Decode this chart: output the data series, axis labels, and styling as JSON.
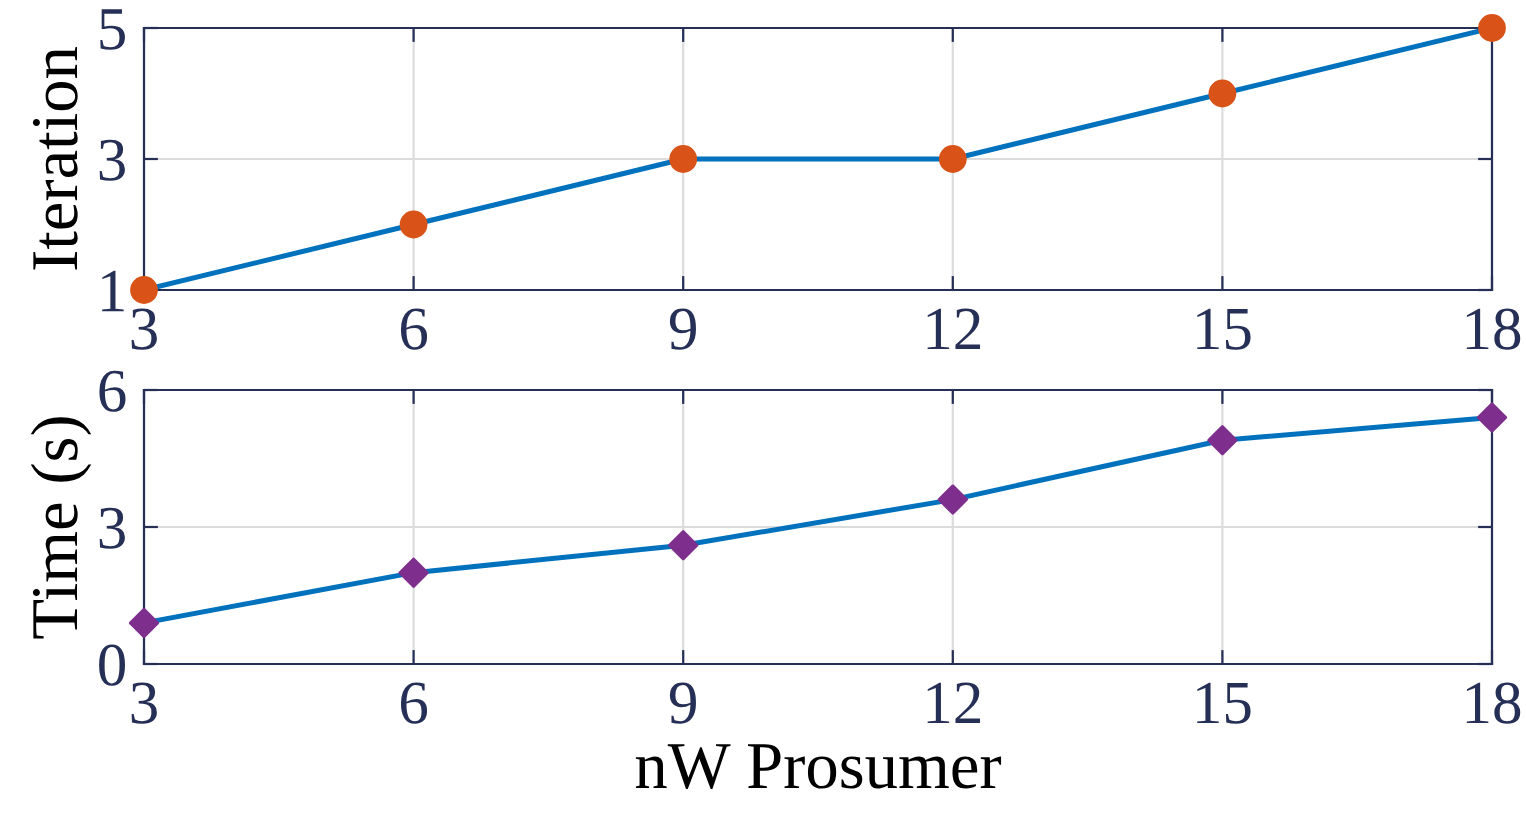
{
  "chart_data": [
    {
      "type": "line",
      "ylabel": "Iteration",
      "x": [
        3,
        6,
        9,
        12,
        15,
        18
      ],
      "xlim": [
        3,
        18
      ],
      "xticks": [
        3,
        6,
        9,
        12,
        15,
        18
      ],
      "ylim": [
        1,
        5
      ],
      "yticks": [
        1,
        3,
        5
      ],
      "grid": true,
      "marker": "circle",
      "line_style": "solid",
      "series": [
        {
          "color": "#0072bd",
          "colors": [
            "#d95319",
            "#d95319",
            "#d95319",
            "#d95319",
            "#d95319",
            "#d95319"
          ],
          "values": [
            1,
            2,
            3,
            3,
            4,
            5
          ]
        }
      ]
    },
    {
      "type": "line",
      "ylabel": "Time (s)",
      "xlabel": "nW Prosumer",
      "x": [
        3,
        6,
        9,
        12,
        15,
        18
      ],
      "xlim": [
        3,
        18
      ],
      "xticks": [
        3,
        6,
        9,
        12,
        15,
        18
      ],
      "ylim": [
        0,
        6
      ],
      "yticks": [
        0,
        3,
        6
      ],
      "grid": true,
      "marker": "diamond",
      "line_style": "solid",
      "series": [
        {
          "color": "#0072bd",
          "colors": [
            "#7e2f8e",
            "#7e2f8e",
            "#7e2f8e",
            "#7e2f8e",
            "#7e2f8e",
            "#7e2f8e"
          ],
          "values": [
            0.9,
            2.0,
            2.6,
            3.6,
            4.9,
            5.4
          ]
        }
      ]
    }
  ]
}
